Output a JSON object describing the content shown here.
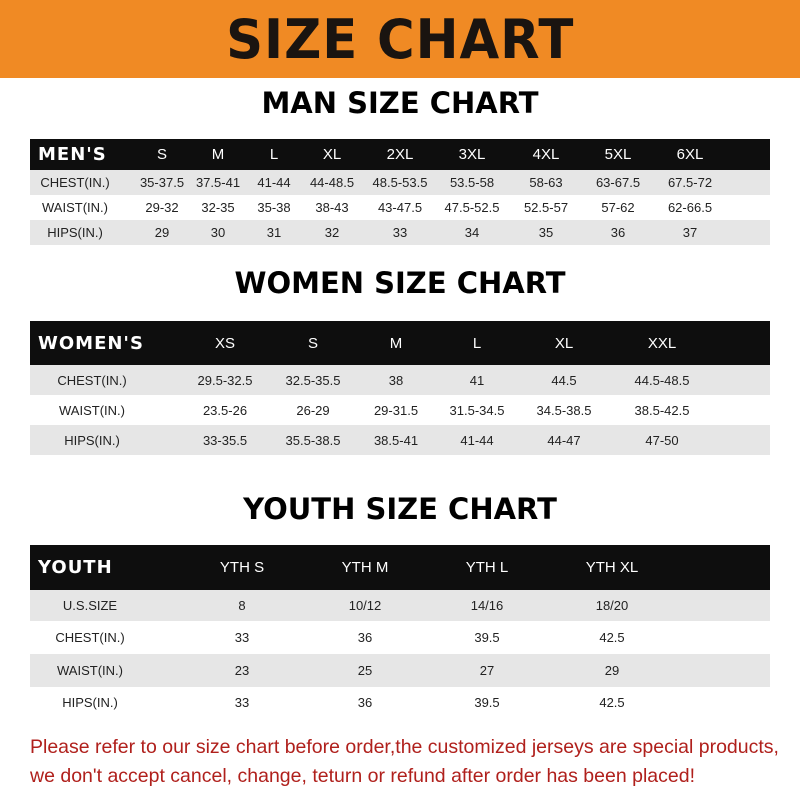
{
  "banner_title": "SIZE CHART",
  "men": {
    "title": "MAN SIZE CHART",
    "header": [
      "MEN'S",
      "S",
      "M",
      "L",
      "XL",
      "2XL",
      "3XL",
      "4XL",
      "5XL",
      "6XL"
    ],
    "rows": [
      [
        "CHEST(IN.)",
        "35-37.5",
        "37.5-41",
        "41-44",
        "44-48.5",
        "48.5-53.5",
        "53.5-58",
        "58-63",
        "63-67.5",
        "67.5-72"
      ],
      [
        "WAIST(IN.)",
        "29-32",
        "32-35",
        "35-38",
        "38-43",
        "43-47.5",
        "47.5-52.5",
        "52.5-57",
        "57-62",
        "62-66.5"
      ],
      [
        "HIPS(IN.)",
        "29",
        "30",
        "31",
        "32",
        "33",
        "34",
        "35",
        "36",
        "37"
      ]
    ]
  },
  "women": {
    "title": "WOMEN SIZE CHART",
    "header": [
      "WOMEN'S",
      "XS",
      "S",
      "M",
      "L",
      "XL",
      "XXL"
    ],
    "rows": [
      [
        "CHEST(IN.)",
        "29.5-32.5",
        "32.5-35.5",
        "38",
        "41",
        "44.5",
        "44.5-48.5"
      ],
      [
        "WAIST(IN.)",
        "23.5-26",
        "26-29",
        "29-31.5",
        "31.5-34.5",
        "34.5-38.5",
        "38.5-42.5"
      ],
      [
        "HIPS(IN.)",
        "33-35.5",
        "35.5-38.5",
        "38.5-41",
        "41-44",
        "44-47",
        "47-50"
      ]
    ]
  },
  "youth": {
    "title": "YOUTH SIZE CHART",
    "header": [
      "YOUTH",
      "YTH S",
      "YTH M",
      "YTH L",
      "YTH XL"
    ],
    "rows": [
      [
        "U.S.SIZE",
        "8",
        "10/12",
        "14/16",
        "18/20"
      ],
      [
        "CHEST(IN.)",
        "33",
        "36",
        "39.5",
        "42.5"
      ],
      [
        "WAIST(IN.)",
        "23",
        "25",
        "27",
        "29"
      ],
      [
        "HIPS(IN.)",
        "33",
        "36",
        "39.5",
        "42.5"
      ]
    ]
  },
  "footer": {
    "line1": "Please refer to our size chart before order,the customized jerseys are special products,",
    "line2": "we don't accept cancel, change, teturn or refund after order has been placed!"
  },
  "colors": {
    "banner": "#f08a24",
    "header_row": "#0e0e0e",
    "stripe": "#e6e6e6",
    "footer_text": "#b0201c"
  }
}
